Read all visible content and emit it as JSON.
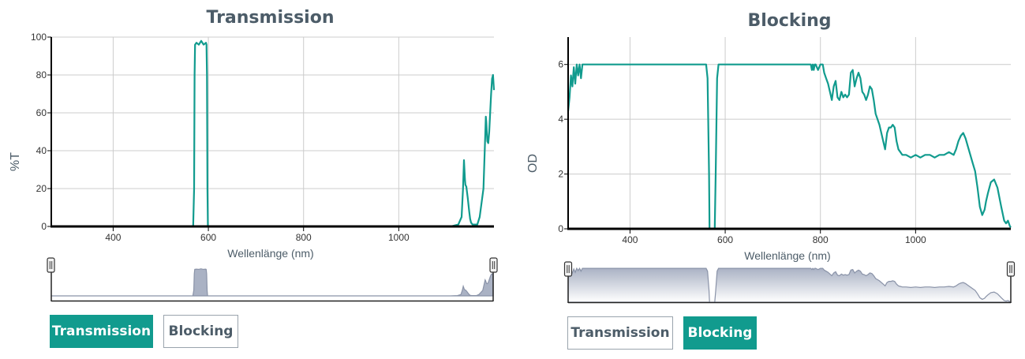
{
  "colors": {
    "accent": "#119b8e",
    "line": "#119b8e",
    "axis": "#000000",
    "grid": "#cccccc",
    "overview_fill": "#aab2c4",
    "text": "#4c5c68"
  },
  "left": {
    "title": "Transmission",
    "buttons": {
      "transmission": "Transmission",
      "blocking": "Blocking",
      "active": "transmission"
    }
  },
  "right": {
    "title": "Blocking",
    "buttons": {
      "transmission": "Transmission",
      "blocking": "Blocking",
      "active": "blocking"
    }
  },
  "chart_data": [
    {
      "type": "line",
      "title": "Transmission",
      "xlabel": "Wellenlänge (nm)",
      "ylabel": "%T",
      "xlim": [
        270,
        1200
      ],
      "ylim": [
        0,
        100
      ],
      "xticks": [
        400,
        600,
        800,
        1000
      ],
      "yticks": [
        0,
        20,
        40,
        60,
        80,
        100
      ],
      "grid": true,
      "series": [
        {
          "x": [
            270,
            568,
            570,
            571,
            572,
            575,
            580,
            585,
            590,
            595,
            596,
            597,
            598,
            599,
            600,
            1110,
            1125,
            1132,
            1135,
            1137,
            1138,
            1139,
            1140,
            1142,
            1145,
            1148,
            1150,
            1152,
            1155,
            1160,
            1165,
            1170,
            1178,
            1182,
            1183,
            1184,
            1186,
            1188,
            1190,
            1192,
            1194,
            1196,
            1198,
            1200
          ],
          "y": [
            0,
            0,
            20,
            80,
            96,
            97,
            96,
            98,
            96,
            97,
            96,
            80,
            20,
            0,
            0,
            0,
            1,
            5,
            20,
            35,
            30,
            25,
            22,
            21,
            15,
            8,
            4,
            2,
            1,
            1,
            1,
            5,
            20,
            50,
            58,
            55,
            45,
            44,
            50,
            60,
            70,
            78,
            80,
            72
          ]
        }
      ]
    },
    {
      "type": "line",
      "title": "Blocking",
      "xlabel": "Wellenlänge (nm)",
      "ylabel": "OD",
      "xlim": [
        270,
        1200
      ],
      "ylim": [
        0,
        7
      ],
      "xticks": [
        400,
        600,
        800,
        1000
      ],
      "yticks": [
        0,
        2,
        4,
        6
      ],
      "grid": true,
      "series": [
        {
          "x": [
            270,
            273,
            276,
            279,
            282,
            285,
            288,
            291,
            294,
            297,
            300,
            305,
            310,
            560,
            563,
            566,
            567,
            578,
            580,
            583,
            586,
            780,
            782,
            784,
            786,
            788,
            790,
            795,
            800,
            805,
            808,
            812,
            816,
            820,
            824,
            828,
            832,
            836,
            840,
            844,
            848,
            852,
            856,
            860,
            864,
            868,
            872,
            876,
            880,
            884,
            888,
            892,
            896,
            900,
            904,
            908,
            912,
            916,
            920,
            924,
            928,
            932,
            936,
            940,
            944,
            948,
            952,
            956,
            960,
            964,
            968,
            972,
            980,
            990,
            1000,
            1010,
            1020,
            1030,
            1040,
            1050,
            1060,
            1070,
            1080,
            1085,
            1090,
            1095,
            1100,
            1105,
            1110,
            1115,
            1120,
            1125,
            1130,
            1135,
            1140,
            1145,
            1148,
            1152,
            1158,
            1165,
            1172,
            1180,
            1186,
            1190,
            1194,
            1198,
            1200
          ],
          "y": [
            4.3,
            4.8,
            5.6,
            5.2,
            5.9,
            5.3,
            6.0,
            5.6,
            6.0,
            5.5,
            6.0,
            6.0,
            6.0,
            6.0,
            5.5,
            2.0,
            0.0,
            0.0,
            2.0,
            5.5,
            6.0,
            6.0,
            5.8,
            6.0,
            5.8,
            6.0,
            6.0,
            5.8,
            6.0,
            6.0,
            5.7,
            5.5,
            5.3,
            5.0,
            4.7,
            5.2,
            5.4,
            4.8,
            4.7,
            5.0,
            4.8,
            4.9,
            4.8,
            4.9,
            5.7,
            5.8,
            5.2,
            5.5,
            5.7,
            5.5,
            5.0,
            4.9,
            4.7,
            4.9,
            5.2,
            5.1,
            4.7,
            4.2,
            4.0,
            3.8,
            3.5,
            3.2,
            2.9,
            3.5,
            3.7,
            3.7,
            3.8,
            3.7,
            3.2,
            2.9,
            2.8,
            2.7,
            2.7,
            2.6,
            2.7,
            2.6,
            2.7,
            2.7,
            2.6,
            2.7,
            2.7,
            2.8,
            2.7,
            2.9,
            3.2,
            3.4,
            3.5,
            3.3,
            3.0,
            2.7,
            2.4,
            2.1,
            1.5,
            0.8,
            0.5,
            0.7,
            1.0,
            1.3,
            1.7,
            1.8,
            1.5,
            0.8,
            0.3,
            0.2,
            0.3,
            0.1,
            0.05
          ]
        }
      ]
    }
  ]
}
